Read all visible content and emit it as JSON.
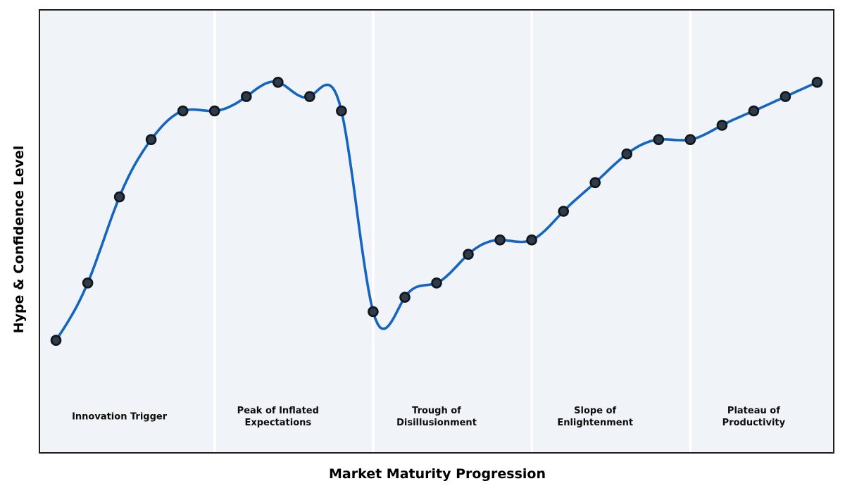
{
  "figure": {
    "background": "#ffffff",
    "plot_background": "#f0f4f8",
    "frame_color": "#1f1f1f",
    "divider_color": "#ffffff"
  },
  "chart_data": {
    "type": "line",
    "title": "",
    "xlabel": "Market Maturity Progression",
    "ylabel": "Hype & Confidence Level",
    "x": [
      0,
      1,
      2,
      3,
      4,
      5,
      6,
      7,
      8,
      9,
      10,
      11,
      12,
      13,
      14,
      15,
      16,
      17,
      18,
      19,
      20,
      21,
      22,
      23,
      24
    ],
    "values": [
      20,
      28,
      40,
      48,
      52,
      52,
      54,
      56,
      54,
      52,
      24,
      26,
      28,
      32,
      34,
      34,
      38,
      42,
      46,
      48,
      48,
      50,
      52,
      54,
      56
    ],
    "xlim": [
      -0.5,
      24.5
    ],
    "ylim": [
      4.4,
      66
    ],
    "grid": false,
    "legend": "none",
    "curve_style": "smooth-cubic-spline",
    "line_color": "#1565c0",
    "line_width": 3.6,
    "marker_fill": "#2e3b4a",
    "marker_edge": "#10151b",
    "phase_boundaries_x": [
      5,
      10,
      15,
      20
    ],
    "phases": [
      {
        "label": "Innovation Trigger",
        "x_start": -0.5,
        "x_end": 5,
        "label_x": 2
      },
      {
        "label": "Peak of Inflated\nExpectations",
        "x_start": 5,
        "x_end": 10,
        "label_x": 7
      },
      {
        "label": "Trough of\nDisillusionment",
        "x_start": 10,
        "x_end": 15,
        "label_x": 12
      },
      {
        "label": "Slope of\nEnlightenment",
        "x_start": 15,
        "x_end": 20,
        "label_x": 17
      },
      {
        "label": "Plateau of\nProductivity",
        "x_start": 20,
        "x_end": 24.5,
        "label_x": 22
      }
    ]
  }
}
